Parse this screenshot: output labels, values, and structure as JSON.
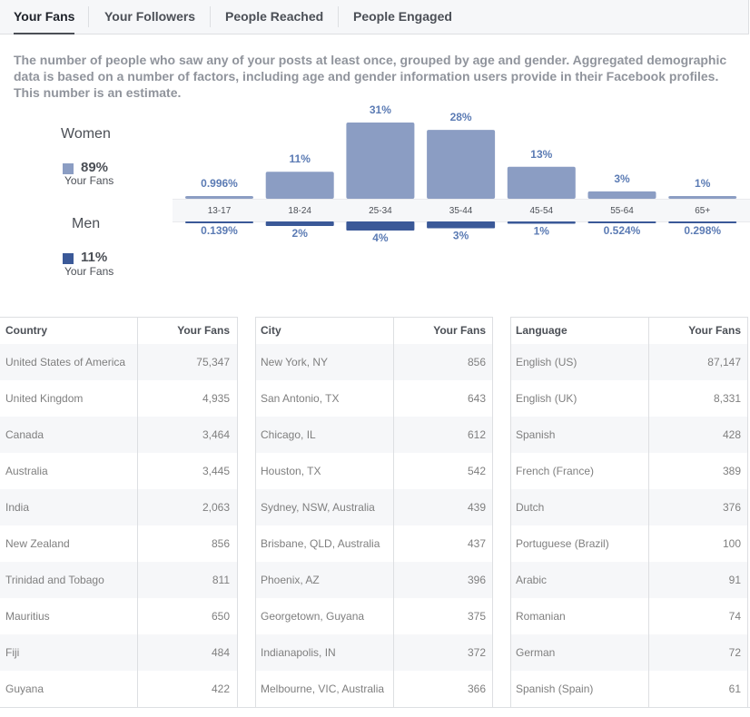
{
  "tabs": [
    {
      "label": "Your Fans",
      "active": true
    },
    {
      "label": "Your Followers",
      "active": false
    },
    {
      "label": "People Reached",
      "active": false
    },
    {
      "label": "People Engaged",
      "active": false
    }
  ],
  "description": "The number of people who saw any of your posts at least once, grouped by age and gender. Aggregated demographic data is based on a number of factors, including age and gender information users provide in their Facebook profiles. This number is an estimate.",
  "legend": {
    "women": {
      "title": "Women",
      "pct": "89%",
      "sub": "Your Fans",
      "color": "#8b9dc3"
    },
    "men": {
      "title": "Men",
      "pct": "11%",
      "sub": "Your Fans",
      "color": "#3b5998"
    }
  },
  "chart_data": {
    "type": "bar",
    "categories": [
      "13-17",
      "18-24",
      "25-34",
      "35-44",
      "45-54",
      "55-64",
      "65+"
    ],
    "series": [
      {
        "name": "Women",
        "values": [
          0.996,
          11,
          31,
          28,
          13,
          3,
          1
        ],
        "labels": [
          "0.996%",
          "11%",
          "31%",
          "28%",
          "13%",
          "3%",
          "1%"
        ],
        "color": "#8b9dc3"
      },
      {
        "name": "Men",
        "values": [
          0.139,
          2,
          4,
          3,
          1,
          0.524,
          0.298
        ],
        "labels": [
          "0.139%",
          "2%",
          "4%",
          "3%",
          "1%",
          "0.524%",
          "0.298%"
        ],
        "color": "#3b5998"
      }
    ]
  },
  "tables": [
    {
      "headers": [
        "Country",
        "Your Fans"
      ],
      "rows": [
        [
          "United States of America",
          "75,347"
        ],
        [
          "United Kingdom",
          "4,935"
        ],
        [
          "Canada",
          "3,464"
        ],
        [
          "Australia",
          "3,445"
        ],
        [
          "India",
          "2,063"
        ],
        [
          "New Zealand",
          "856"
        ],
        [
          "Trinidad and Tobago",
          "811"
        ],
        [
          "Mauritius",
          "650"
        ],
        [
          "Fiji",
          "484"
        ],
        [
          "Guyana",
          "422"
        ]
      ]
    },
    {
      "headers": [
        "City",
        "Your Fans"
      ],
      "rows": [
        [
          "New York, NY",
          "856"
        ],
        [
          "San Antonio, TX",
          "643"
        ],
        [
          "Chicago, IL",
          "612"
        ],
        [
          "Houston, TX",
          "542"
        ],
        [
          "Sydney, NSW, Australia",
          "439"
        ],
        [
          "Brisbane, QLD, Australia",
          "437"
        ],
        [
          "Phoenix, AZ",
          "396"
        ],
        [
          "Georgetown, Guyana",
          "375"
        ],
        [
          "Indianapolis, IN",
          "372"
        ],
        [
          "Melbourne, VIC, Australia",
          "366"
        ]
      ]
    },
    {
      "headers": [
        "Language",
        "Your Fans"
      ],
      "rows": [
        [
          "English (US)",
          "87,147"
        ],
        [
          "English (UK)",
          "8,331"
        ],
        [
          "Spanish",
          "428"
        ],
        [
          "French (France)",
          "389"
        ],
        [
          "Dutch",
          "376"
        ],
        [
          "Portuguese (Brazil)",
          "100"
        ],
        [
          "Arabic",
          "91"
        ],
        [
          "Romanian",
          "74"
        ],
        [
          "German",
          "72"
        ],
        [
          "Spanish (Spain)",
          "61"
        ]
      ]
    }
  ]
}
